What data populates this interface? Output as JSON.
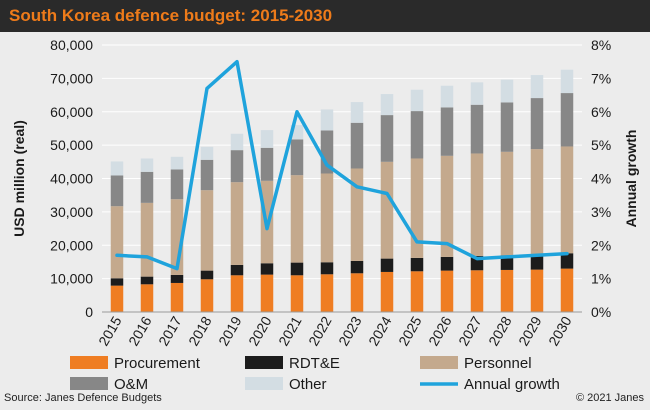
{
  "header": {
    "title": "South Korea defence budget: 2015-2030"
  },
  "footer": {
    "source": "Source: Janes Defence Budgets",
    "copyright": "© 2021 Janes"
  },
  "chart_data": {
    "type": "bar",
    "stacked": true,
    "categories": [
      "2015",
      "2016",
      "2017",
      "2018",
      "2019",
      "2020",
      "2021",
      "2022",
      "2023",
      "2024",
      "2025",
      "2026",
      "2027",
      "2028",
      "2029",
      "2030"
    ],
    "ylabel": "USD million (real)",
    "y2label": "Annual growth",
    "ylim": [
      0,
      80000
    ],
    "y2lim": [
      0,
      8
    ],
    "yticks": [
      "0",
      "10,000",
      "20,000",
      "30,000",
      "40,000",
      "50,000",
      "60,000",
      "70,000",
      "80,000"
    ],
    "y2ticks": [
      "0%",
      "1%",
      "2%",
      "3%",
      "4%",
      "5%",
      "6%",
      "7%",
      "8%"
    ],
    "grid": true,
    "legend_position": "bottom",
    "colors": {
      "Procurement": "#ef7d22",
      "RDT&E": "#1c1c1c",
      "Personnel": "#c4a98d",
      "O&M": "#878787",
      "Other": "#d3dde3",
      "Annual growth": "#1fa3dc"
    },
    "series": [
      {
        "name": "Procurement",
        "kind": "bar",
        "values": [
          7900,
          8300,
          8700,
          9800,
          11000,
          11200,
          11000,
          11300,
          11600,
          12000,
          12200,
          12400,
          12500,
          12600,
          12700,
          13000
        ]
      },
      {
        "name": "RDT&E",
        "kind": "bar",
        "values": [
          2200,
          2300,
          2400,
          2600,
          3100,
          3400,
          3800,
          3600,
          3700,
          4000,
          4000,
          4100,
          4300,
          4400,
          4500,
          4600
        ]
      },
      {
        "name": "Personnel",
        "kind": "bar",
        "values": [
          21600,
          22100,
          22700,
          24100,
          24800,
          24700,
          26200,
          26600,
          27700,
          29000,
          29800,
          30300,
          30700,
          31000,
          31600,
          32000
        ]
      },
      {
        "name": "O&M",
        "kind": "bar",
        "values": [
          9200,
          9300,
          8900,
          9100,
          9600,
          9900,
          10700,
          12900,
          13700,
          14000,
          14200,
          14500,
          14600,
          14800,
          15300,
          16000
        ]
      },
      {
        "name": "Other",
        "kind": "bar",
        "values": [
          4200,
          4000,
          3800,
          3900,
          4900,
          5300,
          4300,
          6300,
          6200,
          6300,
          6400,
          6500,
          6700,
          6800,
          6900,
          7000
        ]
      },
      {
        "name": "Annual growth",
        "kind": "line",
        "axis": "right",
        "values": [
          1.7,
          1.65,
          1.3,
          6.7,
          7.5,
          2.5,
          6.0,
          4.4,
          3.75,
          3.55,
          2.1,
          2.05,
          1.6,
          1.65,
          1.7,
          1.75
        ]
      }
    ]
  }
}
